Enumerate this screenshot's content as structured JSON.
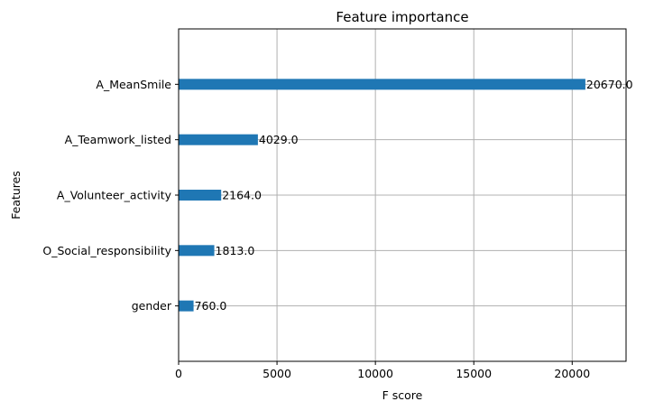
{
  "chart_data": {
    "type": "bar",
    "orientation": "horizontal",
    "title": "Feature importance",
    "xlabel": "F score",
    "ylabel": "Features",
    "categories": [
      "A_MeanSmile",
      "A_Teamwork_listed",
      "A_Volunteer_activity",
      "O_Social_responsibility",
      "gender"
    ],
    "values": [
      20670.0,
      4029.0,
      2164.0,
      1813.0,
      760.0
    ],
    "value_labels": [
      "20670.0",
      "4029.0",
      "2164.0",
      "1813.0",
      "760.0"
    ],
    "xlim": [
      0,
      22737
    ],
    "xticks": [
      0,
      5000,
      10000,
      15000,
      20000
    ],
    "xtick_labels": [
      "0",
      "5000",
      "10000",
      "15000",
      "20000"
    ],
    "grid": true,
    "bar_color": "#1f77b4"
  }
}
